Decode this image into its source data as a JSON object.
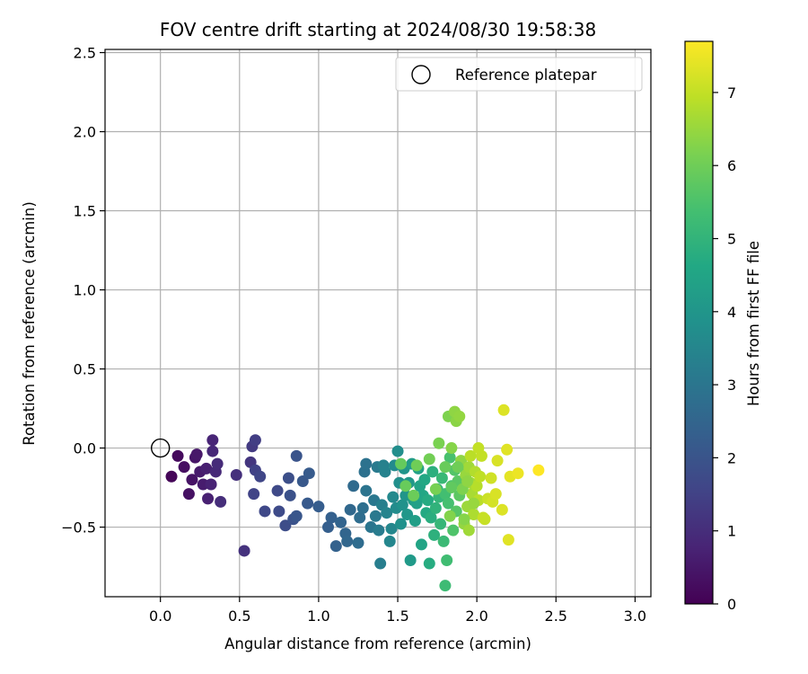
{
  "chart_data": {
    "type": "scatter",
    "title": "FOV centre drift starting at 2024/08/30 19:58:38",
    "xlabel": "Angular distance from reference (arcmin)",
    "ylabel": "Rotation from reference (arcmin)",
    "colorbar_label": "Hours from first FF file",
    "xlim": [
      -0.35,
      3.1
    ],
    "ylim": [
      -0.94,
      2.52
    ],
    "clim": [
      0,
      7.7
    ],
    "colormap": "viridis",
    "grid": true,
    "legend_position": "top-right",
    "x_ticks": [
      "0.0",
      "0.5",
      "1.0",
      "1.5",
      "2.0",
      "2.5",
      "3.0"
    ],
    "y_ticks": [
      "−0.5",
      "0.0",
      "0.5",
      "1.0",
      "1.5",
      "2.0",
      "2.5"
    ],
    "colorbar_ticks": [
      "0",
      "1",
      "2",
      "3",
      "4",
      "5",
      "6",
      "7"
    ],
    "reference": {
      "label": "Reference platepar",
      "x": 0.0,
      "y": 0.0
    },
    "points": [
      [
        0.07,
        -0.18,
        0.1
      ],
      [
        0.11,
        -0.05,
        0.2
      ],
      [
        0.15,
        -0.12,
        0.3
      ],
      [
        0.18,
        -0.29,
        0.35
      ],
      [
        0.2,
        -0.2,
        0.4
      ],
      [
        0.22,
        -0.06,
        0.45
      ],
      [
        0.23,
        -0.04,
        0.5
      ],
      [
        0.25,
        -0.15,
        0.55
      ],
      [
        0.27,
        -0.23,
        0.6
      ],
      [
        0.29,
        -0.13,
        0.65
      ],
      [
        0.3,
        -0.32,
        0.7
      ],
      [
        0.32,
        -0.23,
        0.75
      ],
      [
        0.33,
        0.05,
        0.8
      ],
      [
        0.33,
        -0.02,
        0.85
      ],
      [
        0.35,
        -0.15,
        0.9
      ],
      [
        0.36,
        -0.1,
        0.95
      ],
      [
        0.38,
        -0.34,
        1.0
      ],
      [
        0.48,
        -0.17,
        1.05
      ],
      [
        0.53,
        -0.65,
        1.1
      ],
      [
        0.57,
        -0.09,
        1.2
      ],
      [
        0.58,
        0.01,
        1.3
      ],
      [
        0.6,
        0.05,
        1.4
      ],
      [
        0.6,
        -0.14,
        1.5
      ],
      [
        0.59,
        -0.29,
        1.55
      ],
      [
        0.63,
        -0.18,
        1.6
      ],
      [
        0.66,
        -0.4,
        1.65
      ],
      [
        0.74,
        -0.27,
        1.7
      ],
      [
        0.75,
        -0.4,
        1.75
      ],
      [
        0.79,
        -0.49,
        1.8
      ],
      [
        0.81,
        -0.19,
        1.85
      ],
      [
        0.82,
        -0.3,
        1.9
      ],
      [
        0.84,
        -0.45,
        1.95
      ],
      [
        0.86,
        -0.05,
        2.0
      ],
      [
        0.86,
        -0.43,
        2.05
      ],
      [
        0.9,
        -0.21,
        2.1
      ],
      [
        0.93,
        -0.35,
        2.15
      ],
      [
        0.94,
        -0.16,
        2.2
      ],
      [
        1.0,
        -0.37,
        2.25
      ],
      [
        1.06,
        -0.5,
        2.3
      ],
      [
        1.08,
        -0.44,
        2.35
      ],
      [
        1.11,
        -0.62,
        2.4
      ],
      [
        1.14,
        -0.47,
        2.45
      ],
      [
        1.17,
        -0.54,
        2.5
      ],
      [
        1.18,
        -0.59,
        2.55
      ],
      [
        1.2,
        -0.39,
        2.6
      ],
      [
        1.22,
        -0.24,
        2.65
      ],
      [
        1.25,
        -0.6,
        2.7
      ],
      [
        1.26,
        -0.44,
        2.75
      ],
      [
        1.28,
        -0.38,
        2.8
      ],
      [
        1.29,
        -0.15,
        2.85
      ],
      [
        1.3,
        -0.1,
        2.9
      ],
      [
        1.3,
        -0.27,
        2.95
      ],
      [
        1.33,
        -0.5,
        3.0
      ],
      [
        1.35,
        -0.33,
        3.05
      ],
      [
        1.36,
        -0.43,
        3.1
      ],
      [
        1.37,
        -0.12,
        3.15
      ],
      [
        1.38,
        -0.52,
        3.2
      ],
      [
        1.39,
        -0.73,
        3.25
      ],
      [
        1.4,
        -0.36,
        3.3
      ],
      [
        1.41,
        -0.11,
        3.35
      ],
      [
        1.42,
        -0.15,
        3.4
      ],
      [
        1.43,
        -0.41,
        3.45
      ],
      [
        1.45,
        -0.59,
        3.5
      ],
      [
        1.46,
        -0.51,
        3.55
      ],
      [
        1.47,
        -0.31,
        3.6
      ],
      [
        1.48,
        -0.11,
        3.65
      ],
      [
        1.49,
        -0.38,
        3.7
      ],
      [
        1.5,
        -0.02,
        3.75
      ],
      [
        1.51,
        -0.22,
        3.8
      ],
      [
        1.52,
        -0.48,
        3.85
      ],
      [
        1.53,
        -0.36,
        3.9
      ],
      [
        1.54,
        -0.13,
        3.95
      ],
      [
        1.55,
        -0.3,
        4.0
      ],
      [
        1.56,
        -0.42,
        4.05
      ],
      [
        1.57,
        -0.22,
        4.1
      ],
      [
        1.58,
        -0.71,
        4.15
      ],
      [
        1.59,
        -0.1,
        4.2
      ],
      [
        1.6,
        -0.33,
        4.25
      ],
      [
        1.61,
        -0.46,
        4.3
      ],
      [
        1.62,
        -0.35,
        4.35
      ],
      [
        1.63,
        -0.13,
        4.4
      ],
      [
        1.64,
        -0.24,
        4.45
      ],
      [
        1.65,
        -0.61,
        4.5
      ],
      [
        1.66,
        -0.3,
        4.55
      ],
      [
        1.67,
        -0.2,
        4.6
      ],
      [
        1.68,
        -0.41,
        4.65
      ],
      [
        1.69,
        -0.33,
        4.7
      ],
      [
        1.7,
        -0.73,
        4.75
      ],
      [
        1.71,
        -0.44,
        4.8
      ],
      [
        1.72,
        -0.15,
        4.85
      ],
      [
        1.73,
        -0.55,
        4.9
      ],
      [
        1.74,
        -0.38,
        4.95
      ],
      [
        1.75,
        -0.26,
        5.0
      ],
      [
        1.76,
        -0.31,
        5.05
      ],
      [
        1.77,
        -0.48,
        5.1
      ],
      [
        1.78,
        -0.19,
        5.15
      ],
      [
        1.79,
        -0.59,
        5.2
      ],
      [
        1.8,
        -0.87,
        5.25
      ],
      [
        1.81,
        -0.71,
        5.3
      ],
      [
        1.8,
        -0.29,
        5.35
      ],
      [
        1.82,
        -0.35,
        5.4
      ],
      [
        1.83,
        -0.06,
        5.45
      ],
      [
        1.84,
        -0.24,
        5.5
      ],
      [
        1.85,
        -0.52,
        5.55
      ],
      [
        1.86,
        -0.14,
        5.6
      ],
      [
        1.87,
        -0.4,
        5.65
      ],
      [
        1.88,
        -0.21,
        5.7
      ],
      [
        1.89,
        -0.3,
        5.75
      ],
      [
        1.9,
        -0.11,
        5.8
      ],
      [
        1.52,
        -0.1,
        5.85
      ],
      [
        1.55,
        -0.24,
        5.9
      ],
      [
        1.6,
        -0.3,
        5.95
      ],
      [
        1.62,
        -0.11,
        6.0
      ],
      [
        1.7,
        -0.07,
        6.05
      ],
      [
        1.74,
        -0.26,
        6.1
      ],
      [
        1.76,
        0.03,
        6.15
      ],
      [
        1.82,
        0.2,
        6.2
      ],
      [
        1.83,
        -0.43,
        6.25
      ],
      [
        1.84,
        0.0,
        6.3
      ],
      [
        1.87,
        0.17,
        6.35
      ],
      [
        1.9,
        -0.08,
        6.4
      ],
      [
        1.92,
        -0.48,
        6.45
      ],
      [
        1.93,
        -0.17,
        6.5
      ],
      [
        1.94,
        -0.37,
        6.55
      ],
      [
        1.95,
        -0.12,
        6.6
      ],
      [
        1.96,
        -0.22,
        6.65
      ],
      [
        1.97,
        -0.29,
        6.7
      ],
      [
        1.98,
        -0.42,
        6.75
      ],
      [
        1.99,
        -0.15,
        6.8
      ],
      [
        2.0,
        -0.24,
        6.85
      ],
      [
        2.01,
        -0.33,
        6.9
      ],
      [
        2.02,
        -0.18,
        6.95
      ],
      [
        2.03,
        -0.05,
        7.0
      ],
      [
        2.04,
        -0.44,
        7.05
      ],
      [
        1.86,
        0.23,
        6.4
      ],
      [
        1.89,
        0.2,
        6.45
      ],
      [
        1.95,
        -0.52,
        6.6
      ],
      [
        2.07,
        -0.32,
        7.1
      ],
      [
        2.09,
        -0.19,
        7.15
      ],
      [
        2.1,
        -0.34,
        7.2
      ],
      [
        2.12,
        -0.29,
        7.25
      ],
      [
        2.13,
        -0.08,
        7.25
      ],
      [
        2.16,
        -0.39,
        7.3
      ],
      [
        2.17,
        0.24,
        7.3
      ],
      [
        2.19,
        -0.01,
        7.35
      ],
      [
        2.2,
        -0.58,
        7.35
      ],
      [
        2.21,
        -0.18,
        7.4
      ],
      [
        2.26,
        -0.16,
        7.5
      ],
      [
        2.39,
        -0.14,
        7.7
      ],
      [
        1.8,
        -0.12,
        5.9
      ],
      [
        1.84,
        -0.25,
        5.8
      ],
      [
        1.96,
        -0.05,
        6.9
      ],
      [
        2.01,
        0.0,
        7.0
      ],
      [
        2.05,
        -0.45,
        7.05
      ],
      [
        1.92,
        -0.45,
        6.3
      ],
      [
        1.98,
        -0.35,
        6.5
      ],
      [
        1.88,
        -0.12,
        6.0
      ],
      [
        1.91,
        -0.26,
        6.2
      ],
      [
        1.94,
        -0.21,
        6.4
      ]
    ]
  },
  "colors": {
    "grid": "#b0b0b0",
    "axes": "#000000",
    "legend_border": "#cccccc"
  }
}
